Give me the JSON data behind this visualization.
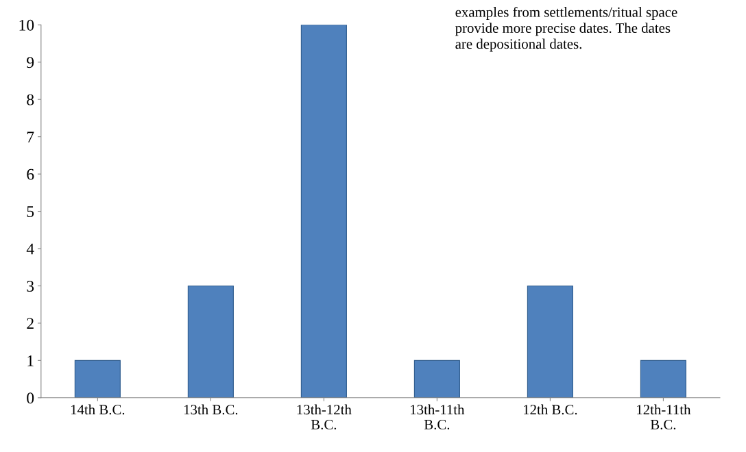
{
  "chart_data": {
    "type": "bar",
    "categories": [
      "14th B.C.",
      "13th B.C.",
      "13th-12th\nB.C.",
      "13th-11th\nB.C.",
      "12th B.C.",
      "12th-11th\nB.C."
    ],
    "values": [
      1,
      3,
      10,
      1,
      3,
      1
    ],
    "color": "#4f81bd",
    "ylim": [
      0,
      10
    ],
    "yticks": [
      0,
      1,
      2,
      3,
      4,
      5,
      6,
      7,
      8,
      9,
      10
    ],
    "grid": false,
    "annotations": [
      "examples from settlements/ritual space\nprovide more precise dates. The dates\nare depositional dates."
    ]
  }
}
